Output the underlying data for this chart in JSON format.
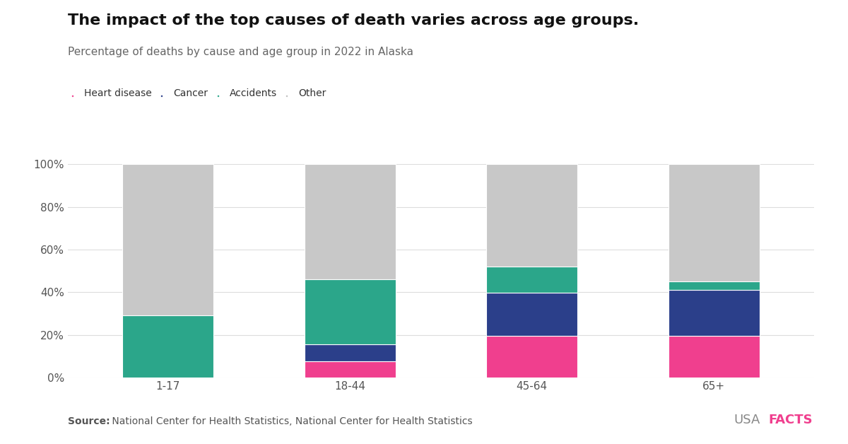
{
  "title": "The impact of the top causes of death varies across age groups.",
  "subtitle": "Percentage of deaths by cause and age group in 2022 in Alaska",
  "source_bold": "Source:",
  "source_rest": " National Center for Health Statistics, National Center for Health Statistics",
  "categories": [
    "1-17",
    "18-44",
    "45-64",
    "65+"
  ],
  "series": [
    {
      "name": "Heart disease",
      "values": [
        0.0,
        7.6923,
        19.4805,
        19.6078
      ],
      "color": "#F03F8E"
    },
    {
      "name": "Cancer",
      "values": [
        0.0,
        7.6923,
        20.2597,
        21.5686
      ],
      "color": "#2B3F8A"
    },
    {
      "name": "Accidents",
      "values": [
        29.0909,
        30.7692,
        12.3377,
        3.9216
      ],
      "color": "#2BA68A"
    },
    {
      "name": "Other",
      "values": [
        70.9091,
        53.8462,
        48.0519,
        55.1373
      ],
      "color": "#C8C8C8"
    }
  ],
  "bar_width": 0.5,
  "ylim": [
    0,
    100
  ],
  "yticks": [
    0,
    20,
    40,
    60,
    80,
    100
  ],
  "ytick_labels": [
    "0%",
    "20%",
    "40%",
    "60%",
    "80%",
    "100%"
  ],
  "background_color": "#FFFFFF",
  "grid_color": "#DDDDDD",
  "title_fontsize": 16,
  "subtitle_fontsize": 11,
  "legend_fontsize": 10,
  "tick_fontsize": 11,
  "source_fontsize": 10,
  "legend_dot_colors": [
    "#F03F8E",
    "#2B3F8A",
    "#2BA68A",
    "#C0C0C0"
  ]
}
